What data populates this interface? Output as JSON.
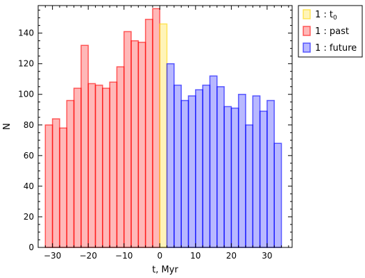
{
  "chart_data": {
    "type": "bar",
    "xlabel": "t, Myr",
    "ylabel": "N",
    "xlim": [
      -34,
      37
    ],
    "ylim": [
      0,
      158
    ],
    "xticks": [
      -30,
      -20,
      -10,
      0,
      10,
      20,
      30
    ],
    "xtick_labels": [
      "−30",
      "−20",
      "−10",
      "0",
      "10",
      "20",
      "30"
    ],
    "yticks": [
      0,
      20,
      40,
      60,
      80,
      100,
      120,
      140
    ],
    "grid": false,
    "legend_position": "outside-top-right",
    "bin_width": 2,
    "series": [
      {
        "name": "1 : past",
        "legend_label": "1 : past",
        "color": "#ff0000",
        "bins": [
          {
            "x0": -32,
            "x1": -30,
            "y": 80
          },
          {
            "x0": -30,
            "x1": -28,
            "y": 84
          },
          {
            "x0": -28,
            "x1": -26,
            "y": 78
          },
          {
            "x0": -26,
            "x1": -24,
            "y": 96
          },
          {
            "x0": -24,
            "x1": -22,
            "y": 104
          },
          {
            "x0": -22,
            "x1": -20,
            "y": 132
          },
          {
            "x0": -20,
            "x1": -18,
            "y": 107
          },
          {
            "x0": -18,
            "x1": -16,
            "y": 106
          },
          {
            "x0": -16,
            "x1": -14,
            "y": 104
          },
          {
            "x0": -14,
            "x1": -12,
            "y": 108
          },
          {
            "x0": -12,
            "x1": -10,
            "y": 118
          },
          {
            "x0": -10,
            "x1": -8,
            "y": 141
          },
          {
            "x0": -8,
            "x1": -6,
            "y": 135
          },
          {
            "x0": -6,
            "x1": -4,
            "y": 134
          },
          {
            "x0": -4,
            "x1": -2,
            "y": 149
          },
          {
            "x0": -2,
            "x1": 0,
            "y": 156
          }
        ]
      },
      {
        "name": "1 : t0",
        "legend_label": "1 : t",
        "legend_sub": "0",
        "color": "#ffd700",
        "bins": [
          {
            "x0": 0,
            "x1": 2,
            "y": 146
          }
        ]
      },
      {
        "name": "1 : future",
        "legend_label": "1 : future",
        "color": "#0000ff",
        "bins": [
          {
            "x0": 2,
            "x1": 4,
            "y": 120
          },
          {
            "x0": 4,
            "x1": 6,
            "y": 106
          },
          {
            "x0": 6,
            "x1": 8,
            "y": 96
          },
          {
            "x0": 8,
            "x1": 10,
            "y": 99
          },
          {
            "x0": 10,
            "x1": 12,
            "y": 103
          },
          {
            "x0": 12,
            "x1": 14,
            "y": 106
          },
          {
            "x0": 14,
            "x1": 16,
            "y": 112
          },
          {
            "x0": 16,
            "x1": 18,
            "y": 105
          },
          {
            "x0": 18,
            "x1": 20,
            "y": 92
          },
          {
            "x0": 20,
            "x1": 22,
            "y": 91
          },
          {
            "x0": 22,
            "x1": 24,
            "y": 100
          },
          {
            "x0": 24,
            "x1": 26,
            "y": 80
          },
          {
            "x0": 26,
            "x1": 28,
            "y": 99
          },
          {
            "x0": 28,
            "x1": 30,
            "y": 89
          },
          {
            "x0": 30,
            "x1": 32,
            "y": 96
          },
          {
            "x0": 32,
            "x1": 34,
            "y": 68
          }
        ]
      }
    ],
    "legend_order": [
      "1 : t0",
      "1 : past",
      "1 : future"
    ]
  }
}
